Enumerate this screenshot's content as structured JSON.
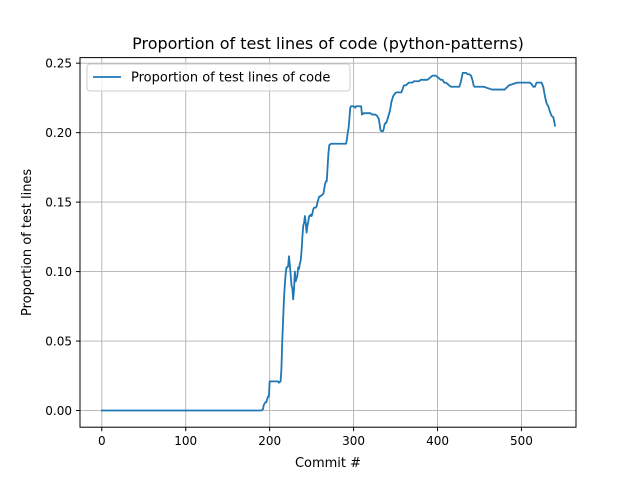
{
  "chart_data": {
    "type": "line",
    "title": "Proportion of test lines of code (python-patterns)",
    "xlabel": "Commit #",
    "ylabel": "Proportion of test lines",
    "xlim": [
      -26,
      565
    ],
    "ylim": [
      -0.012,
      0.254
    ],
    "xticks": [
      0,
      100,
      200,
      300,
      400,
      500
    ],
    "yticks": [
      0.0,
      0.05,
      0.1,
      0.15,
      0.2,
      0.25
    ],
    "xtick_labels": [
      "0",
      "100",
      "200",
      "300",
      "400",
      "500"
    ],
    "ytick_labels": [
      "0.00",
      "0.05",
      "0.10",
      "0.15",
      "0.20",
      "0.25"
    ],
    "grid": true,
    "legend_position": "top-left",
    "series": [
      {
        "name": "Proportion of test lines of code",
        "color": "#1f77b4",
        "x": [
          0,
          100,
          189,
          190,
          192,
          193,
          195,
          196,
          198,
          199,
          200,
          210,
          211,
          213,
          214,
          215,
          216,
          217,
          218,
          219,
          220,
          221,
          222,
          223,
          224,
          225,
          226,
          227,
          228,
          229,
          230,
          231,
          232,
          233,
          234,
          235,
          236,
          237,
          238,
          239,
          240,
          241,
          242,
          243,
          244,
          245,
          246,
          247,
          248,
          249,
          250,
          251,
          252,
          253,
          254,
          255,
          256,
          257,
          258,
          259,
          260,
          262,
          264,
          266,
          267,
          268,
          270,
          271,
          273,
          275,
          276,
          277,
          278,
          279,
          280,
          281,
          282,
          283,
          284,
          285,
          286,
          287,
          288,
          289,
          290,
          291,
          292,
          293,
          294,
          295,
          296,
          297,
          298,
          300,
          302,
          303,
          304,
          305,
          306,
          307,
          308,
          309,
          310,
          312,
          315,
          318,
          320,
          322,
          324,
          326,
          328,
          330,
          332,
          333,
          334,
          335,
          336,
          337,
          338,
          339,
          340,
          341,
          342,
          343,
          344,
          345,
          347,
          349,
          351,
          353,
          355,
          357,
          360,
          362,
          364,
          366,
          368,
          370,
          372,
          374,
          376,
          378,
          380,
          382,
          384,
          386,
          388,
          390,
          392,
          394,
          396,
          398,
          400,
          402,
          404,
          406,
          408,
          410,
          412,
          414,
          416,
          418,
          420,
          422,
          424,
          426,
          428,
          430,
          432,
          434,
          436,
          438,
          440,
          441,
          442,
          443,
          444,
          445,
          446,
          447,
          448,
          450,
          455,
          460,
          465,
          470,
          475,
          480,
          485,
          490,
          495,
          500,
          502,
          504,
          506,
          508,
          510,
          512,
          514,
          516,
          518,
          520,
          522,
          524,
          526,
          528,
          530,
          532,
          534,
          536,
          538,
          540
        ],
        "y": [
          0.0,
          0.0,
          0.0,
          0.0,
          0.001,
          0.004,
          0.006,
          0.006,
          0.01,
          0.01,
          0.021,
          0.021,
          0.02,
          0.021,
          0.03,
          0.05,
          0.065,
          0.08,
          0.09,
          0.098,
          0.103,
          0.103,
          0.104,
          0.111,
          0.105,
          0.098,
          0.09,
          0.088,
          0.08,
          0.087,
          0.1,
          0.093,
          0.095,
          0.097,
          0.103,
          0.102,
          0.106,
          0.108,
          0.115,
          0.125,
          0.133,
          0.135,
          0.14,
          0.135,
          0.128,
          0.133,
          0.136,
          0.14,
          0.14,
          0.141,
          0.14,
          0.142,
          0.145,
          0.146,
          0.146,
          0.146,
          0.147,
          0.15,
          0.152,
          0.154,
          0.154,
          0.155,
          0.156,
          0.163,
          0.165,
          0.165,
          0.185,
          0.191,
          0.192,
          0.192,
          0.192,
          0.192,
          0.192,
          0.192,
          0.192,
          0.192,
          0.192,
          0.192,
          0.192,
          0.192,
          0.192,
          0.192,
          0.192,
          0.192,
          0.192,
          0.192,
          0.195,
          0.2,
          0.203,
          0.21,
          0.218,
          0.219,
          0.219,
          0.219,
          0.218,
          0.219,
          0.219,
          0.219,
          0.219,
          0.219,
          0.219,
          0.219,
          0.213,
          0.214,
          0.214,
          0.214,
          0.214,
          0.213,
          0.213,
          0.213,
          0.212,
          0.21,
          0.202,
          0.201,
          0.201,
          0.201,
          0.203,
          0.206,
          0.207,
          0.207,
          0.209,
          0.211,
          0.213,
          0.215,
          0.218,
          0.222,
          0.226,
          0.228,
          0.229,
          0.229,
          0.229,
          0.229,
          0.234,
          0.234,
          0.235,
          0.236,
          0.236,
          0.236,
          0.237,
          0.237,
          0.237,
          0.237,
          0.238,
          0.238,
          0.238,
          0.238,
          0.238,
          0.239,
          0.24,
          0.241,
          0.241,
          0.241,
          0.24,
          0.239,
          0.238,
          0.238,
          0.236,
          0.236,
          0.235,
          0.234,
          0.233,
          0.233,
          0.233,
          0.233,
          0.233,
          0.233,
          0.237,
          0.243,
          0.243,
          0.243,
          0.242,
          0.242,
          0.241,
          0.239,
          0.237,
          0.234,
          0.233,
          0.233,
          0.233,
          0.233,
          0.233,
          0.233,
          0.233,
          0.232,
          0.231,
          0.231,
          0.231,
          0.231,
          0.234,
          0.235,
          0.236,
          0.236,
          0.236,
          0.236,
          0.236,
          0.236,
          0.236,
          0.235,
          0.233,
          0.233,
          0.236,
          0.236,
          0.236,
          0.236,
          0.233,
          0.226,
          0.221,
          0.219,
          0.215,
          0.212,
          0.211,
          0.205
        ]
      }
    ]
  }
}
